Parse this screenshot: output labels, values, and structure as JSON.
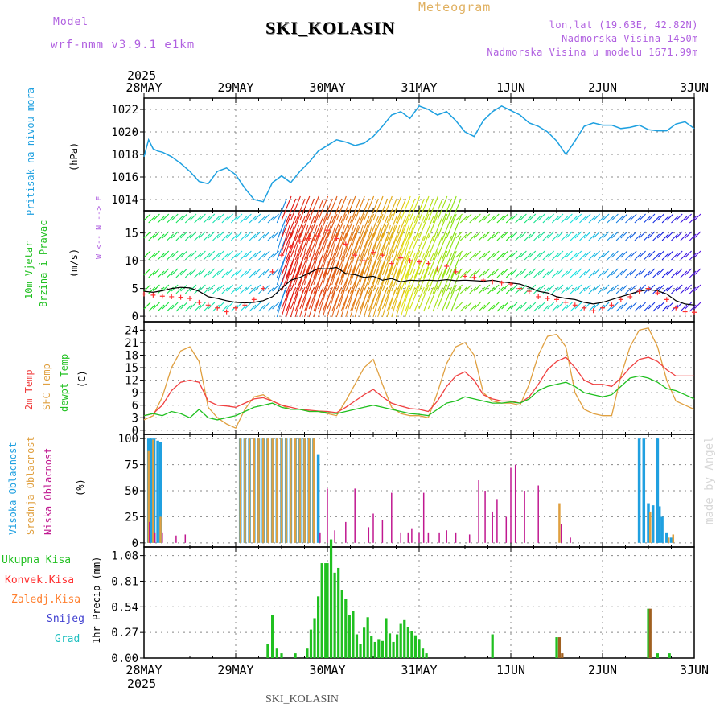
{
  "header": {
    "model_label": "Model",
    "model_name": "wrf-nmm_v3.9.1 e1km",
    "title": "SKI_KOLASIN",
    "subtitle": "Meteogram",
    "coords": "lon,lat (19.63E, 42.82N)",
    "elevation": "Nadmorska Visina 1450m",
    "model_elevation": "Nadmorska Visina u modelu 1671.99m",
    "footer_station": "SKI_KOLASIN",
    "watermark": "made by Angel"
  },
  "time_axis": {
    "year": "2025",
    "labels": [
      "28MAY",
      "29MAY",
      "30MAY",
      "31MAY",
      "1JUN",
      "2JUN",
      "3JUN"
    ]
  },
  "colors": {
    "pressure": "#1ea0e0",
    "wind_speed": "#000000",
    "gust": "#ff3030",
    "temp2m": "#f04040",
    "sfc_temp": "#e0a040",
    "dewpt": "#20c020",
    "high_cloud": "#20a0e0",
    "mid_cloud": "#e0a040",
    "low_cloud": "#c01890",
    "total_precip": "#20c020",
    "conv_precip": "#ff3030",
    "frozen_precip": "#ff8030",
    "snow": "#4040d0",
    "graupel": "#20c0c0"
  },
  "panel_labels": {
    "pressure_name": "Pritisak na nivou mora",
    "pressure_unit": "(hPa)",
    "wind_name1": "10m Vjetar",
    "wind_name2": "Brzina i Pravac",
    "wind_unit": "(m/s)",
    "wind_compass": "W <-- N --> E",
    "temp_name1": "2m Temp",
    "temp_name2": "SFC Temp",
    "temp_name3": "dewpt Temp",
    "temp_unit": "(C)",
    "cloud_name1": "Visoka Oblacnost",
    "cloud_name2": "Srednja Oblacnost",
    "cloud_name3": "Niska Oblacnost",
    "cloud_unit": "(%)",
    "precip_name1": "Ukupna Kisa",
    "precip_name2": "Konvek.Kisa",
    "precip_name3": "Zaledj.Kisa",
    "precip_name4": "Snijeg",
    "precip_name5": "Grad",
    "precip_unit": "1hr Precip (mm)"
  },
  "chart_data": [
    {
      "type": "line",
      "name": "pressure",
      "ylabel": "Pritisak na nivou mora (hPa)",
      "ylim": [
        1013,
        1023
      ],
      "yticks": [
        1014,
        1016,
        1018,
        1020,
        1022
      ],
      "x": [
        0,
        0.05,
        0.1,
        0.15,
        0.2,
        0.3,
        0.4,
        0.5,
        0.6,
        0.7,
        0.8,
        0.9,
        1.0,
        1.1,
        1.2,
        1.3,
        1.4,
        1.5,
        1.6,
        1.7,
        1.8,
        1.9,
        2.0,
        2.1,
        2.2,
        2.3,
        2.4,
        2.5,
        2.6,
        2.7,
        2.8,
        2.9,
        3.0,
        3.1,
        3.2,
        3.3,
        3.4,
        3.5,
        3.6,
        3.7,
        3.8,
        3.9,
        4.0,
        4.1,
        4.2,
        4.3,
        4.4,
        4.5,
        4.6,
        4.7,
        4.8,
        4.9,
        5.0,
        5.1,
        5.2,
        5.3,
        5.4,
        5.5,
        5.6,
        5.7,
        5.8,
        5.9,
        6.0
      ],
      "series": [
        {
          "values": [
            1017.8,
            1019.3,
            1018.5,
            1018.3,
            1018.2,
            1017.8,
            1017.2,
            1016.5,
            1015.6,
            1015.4,
            1016.5,
            1016.8,
            1016.2,
            1015.0,
            1014.0,
            1013.8,
            1015.5,
            1016.1,
            1015.5,
            1016.5,
            1017.3,
            1018.3,
            1018.8,
            1019.3,
            1019.1,
            1018.8,
            1019.0,
            1019.6,
            1020.5,
            1021.5,
            1021.8,
            1021.2,
            1022.3,
            1022.0,
            1021.5,
            1021.8,
            1021.0,
            1020.0,
            1019.6,
            1021.0,
            1021.8,
            1022.3,
            1021.9,
            1021.5,
            1020.8,
            1020.5,
            1020.0,
            1019.2,
            1018.0,
            1019.2,
            1020.5,
            1020.8,
            1020.6,
            1020.6,
            1020.3,
            1020.4,
            1020.6,
            1020.2,
            1020.1,
            1020.1,
            1020.7,
            1020.9,
            1020.3
          ]
        }
      ]
    },
    {
      "type": "line",
      "name": "wind",
      "ylabel": "10m Vjetar Brzina i Pravac (m/s)",
      "ylim": [
        -1,
        19
      ],
      "yticks": [
        0,
        5,
        10,
        15
      ],
      "x": [
        0,
        0.1,
        0.2,
        0.3,
        0.4,
        0.5,
        0.6,
        0.7,
        0.8,
        0.9,
        1.0,
        1.1,
        1.2,
        1.3,
        1.4,
        1.5,
        1.6,
        1.7,
        1.8,
        1.9,
        2.0,
        2.1,
        2.2,
        2.3,
        2.4,
        2.5,
        2.6,
        2.7,
        2.8,
        2.9,
        3.0,
        3.1,
        3.2,
        3.3,
        3.4,
        3.5,
        3.6,
        3.7,
        3.8,
        3.9,
        4.0,
        4.1,
        4.2,
        4.3,
        4.4,
        4.5,
        4.6,
        4.7,
        4.8,
        4.9,
        5.0,
        5.1,
        5.2,
        5.3,
        5.4,
        5.5,
        5.6,
        5.7,
        5.8,
        5.9,
        6.0
      ],
      "series": [
        {
          "values": [
            4.5,
            4.3,
            4.6,
            5.0,
            5.2,
            5.1,
            4.5,
            3.5,
            3.2,
            2.8,
            2.5,
            2.4,
            2.5,
            2.8,
            3.5,
            5.0,
            6.5,
            7.0,
            7.8,
            8.6,
            8.5,
            8.8,
            7.7,
            7.5,
            7.0,
            7.2,
            6.5,
            6.8,
            6.2,
            6.5,
            6.4,
            6.5,
            6.4,
            6.6,
            6.4,
            6.5,
            6.4,
            6.3,
            6.5,
            6.2,
            6.0,
            5.8,
            5.2,
            4.5,
            4.2,
            3.5,
            3.2,
            3.0,
            2.5,
            2.2,
            2.5,
            3.0,
            3.5,
            4.0,
            4.5,
            4.8,
            4.6,
            4.0,
            2.8,
            2.2,
            2.0
          ]
        },
        {
          "values": [
            4.0,
            3.8,
            3.6,
            3.5,
            3.4,
            3.2,
            2.5,
            2.0,
            1.5,
            0.8,
            1.5,
            2.0,
            3.0,
            5.0,
            8.0,
            11.0,
            12.5,
            13.5,
            14.0,
            14.5,
            15.5,
            14.0,
            13.0,
            11.0,
            10.0,
            11.5,
            11.0,
            9.5,
            10.5,
            10.0,
            9.8,
            9.5,
            8.5,
            9.0,
            8.0,
            7.2,
            7.0,
            6.5,
            6.2,
            6.0,
            5.8,
            5.0,
            4.5,
            3.5,
            3.2,
            3.0,
            2.5,
            2.0,
            1.5,
            1.0,
            1.5,
            2.0,
            3.0,
            3.5,
            4.5,
            5.0,
            4.2,
            3.0,
            1.5,
            0.8,
            0.7
          ]
        }
      ]
    },
    {
      "type": "line",
      "name": "temperature",
      "ylabel": "(C)",
      "ylim": [
        -1,
        26
      ],
      "yticks": [
        0,
        3,
        6,
        9,
        12,
        15,
        18,
        21,
        24
      ],
      "x": [
        0,
        0.1,
        0.2,
        0.3,
        0.4,
        0.5,
        0.6,
        0.7,
        0.8,
        0.9,
        1.0,
        1.1,
        1.2,
        1.3,
        1.4,
        1.5,
        1.6,
        1.7,
        1.8,
        1.9,
        2.0,
        2.1,
        2.2,
        2.3,
        2.4,
        2.5,
        2.6,
        2.7,
        2.8,
        2.9,
        3.0,
        3.1,
        3.2,
        3.3,
        3.4,
        3.5,
        3.6,
        3.7,
        3.8,
        3.9,
        4.0,
        4.1,
        4.2,
        4.3,
        4.4,
        4.5,
        4.6,
        4.7,
        4.8,
        4.9,
        5.0,
        5.1,
        5.2,
        5.3,
        5.4,
        5.5,
        5.6,
        5.7,
        5.8,
        5.9,
        6.0
      ],
      "series": [
        {
          "values": [
            3.5,
            4.0,
            6.0,
            9.5,
            11.5,
            12.0,
            11.5,
            7.0,
            6.0,
            5.8,
            5.5,
            6.5,
            7.5,
            7.8,
            7.0,
            6.0,
            5.5,
            5.0,
            4.8,
            4.6,
            4.5,
            4.2,
            5.5,
            7.0,
            8.5,
            9.8,
            8.0,
            6.5,
            5.8,
            5.2,
            5.0,
            4.5,
            7.0,
            10.5,
            13.0,
            14.0,
            12.0,
            8.5,
            7.5,
            7.0,
            7.0,
            6.5,
            8.0,
            11.0,
            14.5,
            16.5,
            17.5,
            15.0,
            12.0,
            11.0,
            11.0,
            10.5,
            12.5,
            15.0,
            17.0,
            17.5,
            16.5,
            14.5,
            13.0,
            13.0,
            13.0
          ]
        },
        {
          "values": [
            2.5,
            3.5,
            8.0,
            15.0,
            19.0,
            20.0,
            16.5,
            5.5,
            3.0,
            1.5,
            0.5,
            5.0,
            8.0,
            8.5,
            7.0,
            6.0,
            5.0,
            5.0,
            4.5,
            4.5,
            4.0,
            3.5,
            7.0,
            11.0,
            15.0,
            17.0,
            11.0,
            5.5,
            4.0,
            3.5,
            3.5,
            3.0,
            9.0,
            16.0,
            20.0,
            21.0,
            18.0,
            9.0,
            7.0,
            6.5,
            6.5,
            6.0,
            11.0,
            18.0,
            22.5,
            23.0,
            20.0,
            9.0,
            5.0,
            4.0,
            3.5,
            3.5,
            13.0,
            20.0,
            24.0,
            24.5,
            20.0,
            12.0,
            7.0,
            6.0,
            5.0
          ]
        },
        {
          "values": [
            3.5,
            4.0,
            3.5,
            4.5,
            4.0,
            3.0,
            5.0,
            3.0,
            2.5,
            3.0,
            3.5,
            4.5,
            5.5,
            6.0,
            6.5,
            5.5,
            5.0,
            5.0,
            4.5,
            4.5,
            4.2,
            4.0,
            4.5,
            5.0,
            5.5,
            6.0,
            5.5,
            5.0,
            4.5,
            4.0,
            3.8,
            3.5,
            5.0,
            6.5,
            7.0,
            8.0,
            7.5,
            7.0,
            6.5,
            6.5,
            6.8,
            6.5,
            7.5,
            9.5,
            10.5,
            11.0,
            11.5,
            10.5,
            9.0,
            8.5,
            8.0,
            8.5,
            10.5,
            12.5,
            13.0,
            12.5,
            11.5,
            10.0,
            9.5,
            8.5,
            7.5
          ]
        }
      ]
    },
    {
      "type": "bar",
      "name": "cloud",
      "ylabel": "(%)",
      "ylim": [
        -4,
        104
      ],
      "yticks": [
        0,
        25,
        50,
        75,
        100
      ],
      "series": [
        {
          "x": [
            0.05,
            0.08,
            0.11,
            0.15,
            0.18,
            1.05,
            1.1,
            1.15,
            1.2,
            1.25,
            1.3,
            1.35,
            1.4,
            1.45,
            1.5,
            1.55,
            1.6,
            1.65,
            1.7,
            1.75,
            1.8,
            1.85,
            1.9,
            5.4,
            5.45,
            5.5,
            5.55,
            5.6,
            5.62,
            5.65,
            5.7,
            5.75
          ],
          "values": [
            100,
            100,
            100,
            98,
            97,
            100,
            100,
            100,
            100,
            100,
            100,
            100,
            100,
            100,
            100,
            100,
            100,
            100,
            100,
            100,
            100,
            100,
            85,
            100,
            100,
            38,
            36,
            100,
            35,
            25,
            10,
            5
          ]
        },
        {
          "x": [
            0.05,
            0.1,
            0.18,
            1.05,
            1.1,
            1.15,
            1.2,
            1.25,
            1.3,
            1.35,
            1.4,
            1.45,
            1.5,
            1.55,
            1.6,
            1.65,
            1.7,
            1.75,
            1.8,
            1.85,
            4.53,
            5.52,
            5.72,
            5.77
          ],
          "values": [
            88,
            99,
            25,
            100,
            100,
            100,
            100,
            100,
            100,
            100,
            100,
            100,
            100,
            100,
            100,
            100,
            100,
            100,
            100,
            100,
            38,
            30,
            5,
            8
          ]
        },
        {
          "x": [
            0.06,
            0.12,
            0.2,
            0.35,
            0.45,
            1.92,
            2.0,
            2.08,
            2.2,
            2.3,
            2.45,
            2.5,
            2.6,
            2.7,
            2.8,
            2.88,
            2.92,
            3.0,
            3.05,
            3.1,
            3.22,
            3.3,
            3.4,
            3.55,
            3.65,
            3.72,
            3.8,
            3.85,
            3.95,
            4.0,
            4.05,
            4.15,
            4.3,
            4.55,
            4.65
          ],
          "values": [
            20,
            10,
            10,
            7,
            8,
            10,
            52,
            12,
            20,
            52,
            15,
            28,
            22,
            48,
            10,
            10,
            14,
            10,
            48,
            10,
            10,
            12,
            10,
            8,
            60,
            50,
            30,
            42,
            25,
            72,
            75,
            50,
            55,
            18,
            5
          ]
        }
      ]
    },
    {
      "type": "bar",
      "name": "precipitation",
      "ylabel": "1hr Precip (mm)",
      "ylim": [
        0,
        1.17
      ],
      "yticks": [
        0,
        0.27,
        0.54,
        0.81,
        1.08
      ],
      "series": [
        {
          "x": [
            1.35,
            1.4,
            1.45,
            1.5,
            1.65,
            1.78,
            1.82,
            1.86,
            1.9,
            1.94,
            1.98,
            2.0,
            2.04,
            2.08,
            2.12,
            2.16,
            2.2,
            2.24,
            2.28,
            2.32,
            2.36,
            2.4,
            2.44,
            2.48,
            2.52,
            2.56,
            2.6,
            2.64,
            2.68,
            2.72,
            2.76,
            2.8,
            2.84,
            2.88,
            2.92,
            2.96,
            3.0,
            3.04,
            3.08,
            3.8,
            4.5,
            5.5,
            5.6,
            5.73
          ],
          "values": [
            0.15,
            0.45,
            0.1,
            0.05,
            0.05,
            0.1,
            0.3,
            0.42,
            0.65,
            1.0,
            1.0,
            1.0,
            1.25,
            0.9,
            0.95,
            0.72,
            0.62,
            0.45,
            0.5,
            0.25,
            0.15,
            0.32,
            0.43,
            0.23,
            0.17,
            0.2,
            0.18,
            0.42,
            0.26,
            0.17,
            0.25,
            0.36,
            0.4,
            0.33,
            0.28,
            0.24,
            0.2,
            0.1,
            0.05,
            0.25,
            0.22,
            0.52,
            0.05,
            0.05
          ]
        },
        {
          "x": [
            4.53,
            4.56,
            5.52
          ],
          "values": [
            0.22,
            0.05,
            0.52
          ]
        }
      ]
    }
  ]
}
